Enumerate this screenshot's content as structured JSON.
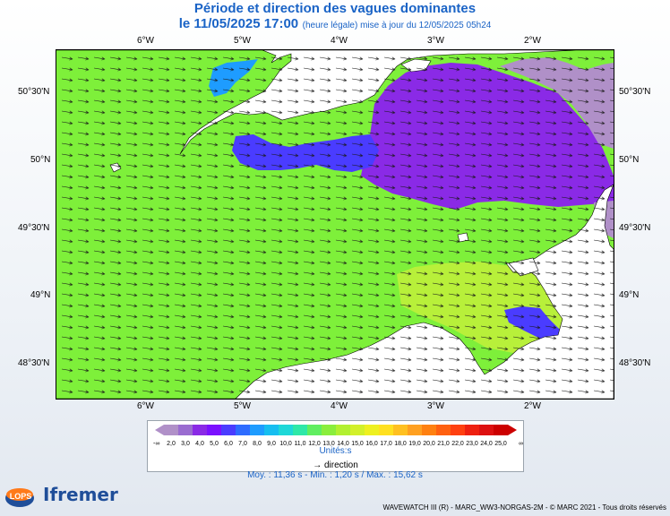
{
  "title": "Période et direction des vagues dominantes",
  "subtitle_main": "le 11/05/2025 17:00",
  "subtitle_detail": "(heure légale) mise à jour du 12/05/2025 05h24",
  "lon_labels": [
    "6°W",
    "5°W",
    "4°W",
    "3°W",
    "2°W"
  ],
  "lat_labels": [
    "50°30'N",
    "50°N",
    "49°30'N",
    "49°N",
    "48°30'N"
  ],
  "legend": {
    "min_symbol": "-∞",
    "max_symbol": "∞",
    "values": [
      "2,0",
      "3,0",
      "4,0",
      "5,0",
      "6,0",
      "7,0",
      "8,0",
      "9,0",
      "10,0",
      "11,0",
      "12,0",
      "13,0",
      "14,0",
      "15,0",
      "16,0",
      "17,0",
      "18,0",
      "19,0",
      "20,0",
      "21,0",
      "22,0",
      "23,0",
      "24,0",
      "25,0"
    ],
    "colors": [
      "#b090c8",
      "#9a6cd0",
      "#8a2ae6",
      "#7a10ff",
      "#4a3cff",
      "#2e6cff",
      "#1e9cff",
      "#16bef0",
      "#1ed8d8",
      "#2ee8a8",
      "#60ee60",
      "#8aee3c",
      "#b2f030",
      "#d2f02a",
      "#eef020",
      "#ffe020",
      "#ffc020",
      "#ffa020",
      "#ff8010",
      "#ff6010",
      "#ff4010",
      "#ee2010",
      "#dd1010",
      "#cc0000"
    ],
    "unit": "Unités:s",
    "direction": "direction"
  },
  "stats": "Moy. : 11,36 s   -   Min. : 1,20 s / Max. : 15,62 s",
  "credit": "WAVEWATCH III (R) - MARC_WW3-NORGAS-2M - © MARC 2021 - Tous droits réservés",
  "logos": {
    "lops": "LOPS",
    "ifremer": "Ifremer"
  },
  "colors": {
    "sea_green": "#7ef03a",
    "sea_light": "#b8f03a",
    "purple": "#8a2ae6",
    "blue": "#4a3cff",
    "lilac": "#b090c8",
    "cyan": "#1e9cff",
    "land": "#ffffff"
  }
}
